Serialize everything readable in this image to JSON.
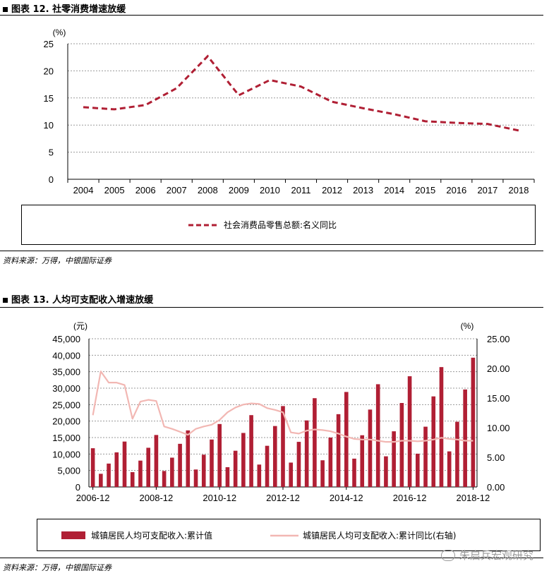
{
  "figure12": {
    "title": "图表 12. 社零消费增速放缓",
    "source": "资料来源：万得，中银国际证券"
  },
  "figure13": {
    "title": "图表 13. 人均可支配收入增速放缓",
    "source": "资料来源：万得，中银国际证券"
  },
  "watermark": "朱启兵宏观研究",
  "colors": {
    "dark_red": "#b01f34",
    "pink": "#f2b7b3",
    "grid": "#9a9a9a"
  },
  "chart_data": [
    {
      "type": "line",
      "unit_label": "(%)",
      "categories": [
        "2004",
        "2005",
        "2006",
        "2007",
        "2008",
        "2009",
        "2010",
        "2011",
        "2012",
        "2013",
        "2014",
        "2015",
        "2016",
        "2017",
        "2018"
      ],
      "series": [
        {
          "name": "社会消费品零售总额:名义同比",
          "values": [
            13.3,
            12.9,
            13.7,
            16.8,
            22.7,
            15.5,
            18.3,
            17.1,
            14.3,
            13.1,
            12.0,
            10.7,
            10.4,
            10.2,
            9.0
          ],
          "style": "dashed",
          "color": "#b01f34"
        }
      ],
      "ylim": [
        0,
        25
      ],
      "yticks": [
        0,
        5,
        10,
        15,
        20,
        25
      ],
      "grid": "horizontal dotted",
      "legend": "bottom"
    },
    {
      "type": "bar",
      "left_unit": "(元)",
      "right_unit": "(%)",
      "x_tick_labels": [
        "2006-12",
        "2008-12",
        "2010-12",
        "2012-12",
        "2014-12",
        "2016-12",
        "2018-12"
      ],
      "y_left_ticks": [
        "0",
        "5,000",
        "10,000",
        "15,000",
        "20,000",
        "25,000",
        "30,000",
        "35,000",
        "40,000",
        "45,000"
      ],
      "y_right_ticks": [
        "0.00",
        "5.00",
        "10.00",
        "15.00",
        "20.00",
        "25.00"
      ],
      "ylim_left": [
        0,
        45000
      ],
      "ylim_right": [
        0,
        25
      ],
      "series": [
        {
          "name": "城镇居民人均可支配收入:累计值",
          "axis": "left",
          "type": "bar",
          "color": "#b01f34",
          "values": [
            11759,
            4000,
            7100,
            10500,
            13786,
            4500,
            8000,
            11900,
            15781,
            4850,
            8900,
            13100,
            17175,
            5300,
            9800,
            14400,
            19109,
            6000,
            11000,
            16400,
            21810,
            6800,
            12500,
            18500,
            24565,
            7400,
            13700,
            20200,
            26955,
            8100,
            15000,
            22100,
            28844,
            8600,
            15700,
            23500,
            31195,
            9300,
            16900,
            25500,
            33616,
            10100,
            18300,
            27500,
            36396,
            10800,
            19800,
            29600,
            39251
          ]
        },
        {
          "name": "城镇居民人均可支配收入:累计同比(右轴)",
          "axis": "right",
          "type": "line",
          "color": "#f2b7b3",
          "values": [
            12.1,
            19.5,
            17.6,
            17.6,
            17.2,
            11.5,
            14.4,
            14.7,
            14.5,
            10.2,
            9.8,
            9.3,
            8.8,
            9.8,
            10.2,
            10.5,
            11.3,
            12.6,
            13.4,
            13.9,
            14.1,
            14.0,
            13.3,
            13.0,
            12.6,
            9.2,
            9.0,
            9.5,
            9.7,
            9.6,
            9.4,
            9.0,
            8.5,
            8.1,
            8.0,
            8.0,
            7.8,
            7.6,
            7.6,
            7.8,
            7.8,
            7.7,
            7.8,
            8.0,
            8.3,
            8.1,
            8.0,
            7.8,
            7.8
          ]
        }
      ],
      "grid": "horizontal dotted",
      "legend": "bottom"
    }
  ]
}
